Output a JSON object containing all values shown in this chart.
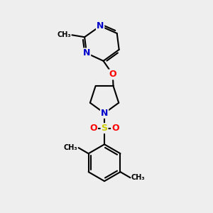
{
  "background_color": "#eeeeee",
  "bond_color": "#000000",
  "nitrogen_color": "#0000cc",
  "oxygen_color": "#ff0000",
  "sulfur_color": "#cccc00",
  "font_size": 8,
  "line_width": 1.5,
  "fig_width": 3.0,
  "fig_height": 3.0,
  "dpi": 100,
  "xlim": [
    0,
    10
  ],
  "ylim": [
    0,
    10
  ]
}
